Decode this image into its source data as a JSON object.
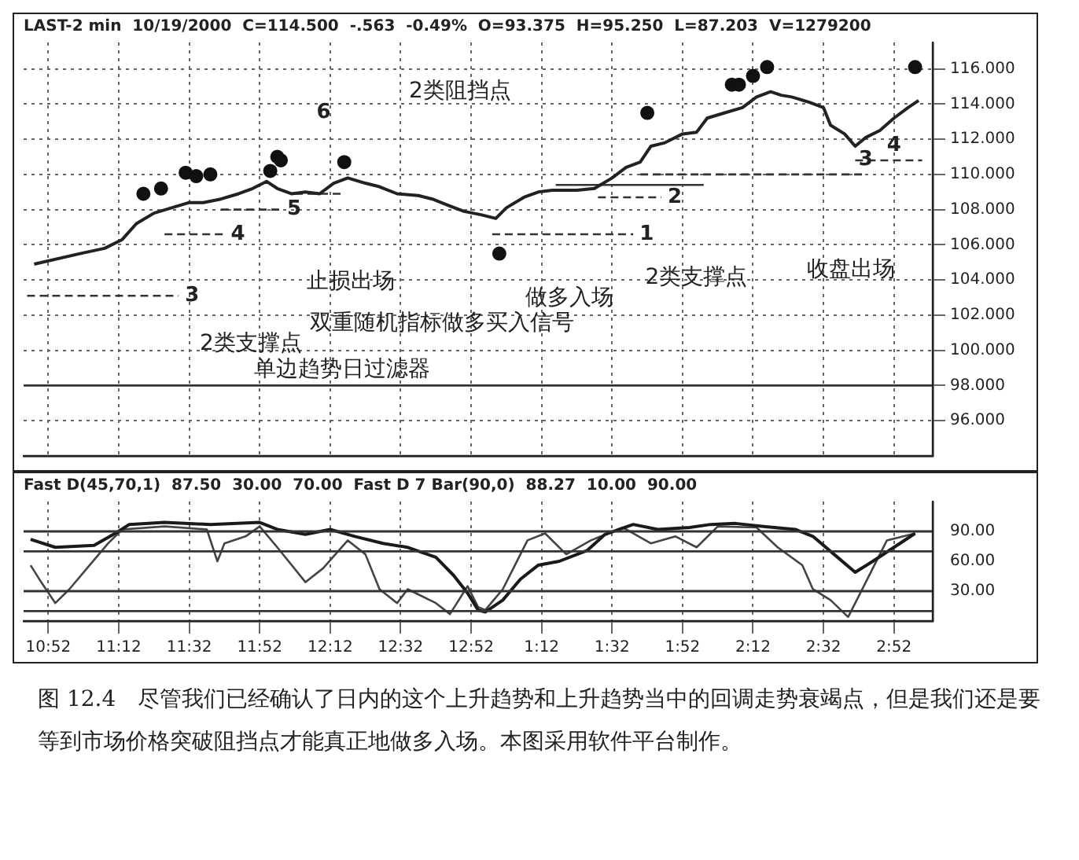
{
  "chart_data": [
    {
      "type": "line",
      "title": "LAST-2 min  10/19/2000  C=114.500  -.563  -0.49%  O=93.375  H=95.250  L=87.203  V=1279200",
      "xlim": [
        "2000-10-19T10:45",
        "2000-10-19T15:03"
      ],
      "ylim": [
        94,
        117.5
      ],
      "xticks": [
        {
          "value": "2000-10-19T10:52",
          "label": null
        },
        {
          "value": "2000-10-19T11:12",
          "label": null
        },
        {
          "value": "2000-10-19T11:32",
          "label": null
        },
        {
          "value": "2000-10-19T11:52",
          "label": null
        },
        {
          "value": "2000-10-19T12:12",
          "label": null
        },
        {
          "value": "2000-10-19T12:32",
          "label": null
        },
        {
          "value": "2000-10-19T12:52",
          "label": null
        },
        {
          "value": "2000-10-19T13:12",
          "label": null
        },
        {
          "value": "2000-10-19T13:32",
          "label": null
        },
        {
          "value": "2000-10-19T13:52",
          "label": null
        },
        {
          "value": "2000-10-19T14:12",
          "label": null
        },
        {
          "value": "2000-10-19T14:32",
          "label": null
        },
        {
          "value": "2000-10-19T14:52",
          "label": null
        }
      ],
      "yticks": [
        {
          "value": 96,
          "label": "96.000"
        },
        {
          "value": 98,
          "label": "98.000"
        },
        {
          "value": 100,
          "label": "100.000"
        },
        {
          "value": 102,
          "label": "102.000"
        },
        {
          "value": 104,
          "label": "104.000"
        },
        {
          "value": 106,
          "label": "106.000"
        },
        {
          "value": 108,
          "label": "108.000"
        },
        {
          "value": 110,
          "label": "110.000"
        },
        {
          "value": 112,
          "label": "112.000"
        },
        {
          "value": 114,
          "label": "114.000"
        },
        {
          "value": 116,
          "label": "116.000"
        }
      ],
      "tick_labels": "y",
      "grid": true,
      "series": [
        {
          "type": "line",
          "color": "#222222",
          "x": [
            "2000-10-19T10:48",
            "2000-10-19T11:01",
            "2000-10-19T11:08",
            "2000-10-19T11:13",
            "2000-10-19T11:17",
            "2000-10-19T11:22",
            "2000-10-19T11:27",
            "2000-10-19T11:32",
            "2000-10-19T11:36",
            "2000-10-19T11:41",
            "2000-10-19T11:46",
            "2000-10-19T11:50",
            "2000-10-19T11:54",
            "2000-10-19T11:57",
            "2000-10-19T12:01",
            "2000-10-19T12:05",
            "2000-10-19T12:09",
            "2000-10-19T12:13",
            "2000-10-19T12:17",
            "2000-10-19T12:22",
            "2000-10-19T12:26",
            "2000-10-19T12:31",
            "2000-10-19T12:37",
            "2000-10-19T12:41",
            "2000-10-19T12:46",
            "2000-10-19T12:50",
            "2000-10-19T12:55",
            "2000-10-19T12:59",
            "2000-10-19T13:02",
            "2000-10-19T13:07",
            "2000-10-19T13:11",
            "2000-10-19T13:15",
            "2000-10-19T13:22",
            "2000-10-19T13:27",
            "2000-10-19T13:32",
            "2000-10-19T13:36",
            "2000-10-19T13:40",
            "2000-10-19T13:43",
            "2000-10-19T13:47",
            "2000-10-19T13:52",
            "2000-10-19T13:56",
            "2000-10-19T13:59",
            "2000-10-19T14:04",
            "2000-10-19T14:09",
            "2000-10-19T14:13",
            "2000-10-19T14:17",
            "2000-10-19T14:20",
            "2000-10-19T14:23",
            "2000-10-19T14:28",
            "2000-10-19T14:32",
            "2000-10-19T14:34",
            "2000-10-19T14:38",
            "2000-10-19T14:41",
            "2000-10-19T14:44",
            "2000-10-19T14:48",
            "2000-10-19T14:52",
            "2000-10-19T14:56",
            "2000-10-19T14:59"
          ],
          "values": [
            104.9,
            105.5,
            105.8,
            106.3,
            107.2,
            107.8,
            108.1,
            108.4,
            108.4,
            108.6,
            108.9,
            109.2,
            109.6,
            109.2,
            108.9,
            109.0,
            108.9,
            109.5,
            109.8,
            109.5,
            109.3,
            108.9,
            108.8,
            108.6,
            108.2,
            107.9,
            107.7,
            107.5,
            108.1,
            108.7,
            109.0,
            109.1,
            109.1,
            109.2,
            109.8,
            110.4,
            110.7,
            111.6,
            111.8,
            112.3,
            112.4,
            113.2,
            113.5,
            113.8,
            114.4,
            114.7,
            114.5,
            114.4,
            114.1,
            113.8,
            112.8,
            112.3,
            111.6,
            112.1,
            112.5,
            113.2,
            113.8,
            114.2
          ]
        },
        {
          "type": "scatter",
          "color": "#111111",
          "marker": "circle",
          "x": [
            "2000-10-19T11:19",
            "2000-10-19T11:24",
            "2000-10-19T11:31",
            "2000-10-19T11:34",
            "2000-10-19T11:38",
            "2000-10-19T11:55",
            "2000-10-19T11:57",
            "2000-10-19T11:58",
            "2000-10-19T12:16",
            "2000-10-19T13:00",
            "2000-10-19T13:42",
            "2000-10-19T14:06",
            "2000-10-19T14:08",
            "2000-10-19T14:12",
            "2000-10-19T14:16",
            "2000-10-19T14:58"
          ],
          "values": [
            108.9,
            109.2,
            110.1,
            109.9,
            110.0,
            110.2,
            111.0,
            110.8,
            110.7,
            105.5,
            113.5,
            115.1,
            115.1,
            115.6,
            116.1,
            116.1
          ]
        },
        {
          "type": "line",
          "color": "#333333",
          "line_style": "dashed",
          "x": [
            "2000-10-19T10:46",
            "2000-10-19T11:29"
          ],
          "values": [
            103.1,
            103.1
          ]
        },
        {
          "type": "line",
          "color": "#333333",
          "line_style": "dashed",
          "x": [
            "2000-10-19T11:25",
            "2000-10-19T11:42"
          ],
          "values": [
            106.6,
            106.6
          ]
        },
        {
          "type": "line",
          "color": "#333333",
          "line_style": "dashed",
          "x": [
            "2000-10-19T11:41",
            "2000-10-19T11:58"
          ],
          "values": [
            108.0,
            108.0
          ]
        },
        {
          "type": "line",
          "color": "#333333",
          "line_style": "dashed",
          "x": [
            "2000-10-19T12:02",
            "2000-10-19T12:16"
          ],
          "values": [
            108.9,
            108.9
          ]
        },
        {
          "type": "line",
          "color": "#333333",
          "line_style": "dashed",
          "x": [
            "2000-10-19T12:58",
            "2000-10-19T13:38"
          ],
          "values": [
            106.6,
            106.6
          ]
        },
        {
          "type": "line",
          "color": "#333333",
          "line_style": "dashed",
          "x": [
            "2000-10-19T13:28",
            "2000-10-19T13:46"
          ],
          "values": [
            108.7,
            108.7
          ]
        },
        {
          "type": "line",
          "color": "#333333",
          "line_style": "solid",
          "x": [
            "2000-10-19T13:16",
            "2000-10-19T13:58"
          ],
          "values": [
            109.4,
            109.4
          ]
        },
        {
          "type": "line",
          "color": "#333333",
          "line_style": "dashed",
          "x": [
            "2000-10-19T13:40",
            "2000-10-19T14:44"
          ],
          "values": [
            110.0,
            110.0
          ]
        },
        {
          "type": "line",
          "color": "#333333",
          "line_style": "dashed",
          "x": [
            "2000-10-19T14:41",
            "2000-10-19T15:00"
          ],
          "values": [
            110.8,
            110.8
          ]
        }
      ],
      "ref_lines": [
        {
          "axis": "y",
          "value": 98,
          "label": "单边趋势日过滤器",
          "color": "#333333"
        }
      ],
      "annotations": [
        {
          "text": "3",
          "x": "2000-10-19T11:29",
          "y": 103.1
        },
        {
          "text": "4",
          "x": "2000-10-19T11:42",
          "y": 106.6
        },
        {
          "text": "5",
          "x": "2000-10-19T11:58",
          "y": 108.0
        },
        {
          "text": "1",
          "x": "2000-10-19T13:38",
          "y": 106.6
        },
        {
          "text": "2",
          "x": "2000-10-19T13:46",
          "y": 108.7
        },
        {
          "text": "3",
          "x": "2000-10-19T14:44",
          "y": 110.0
        },
        {
          "text": "4",
          "x": "2000-10-19T14:52",
          "y": 110.8
        },
        "6",
        "2类支撑点",
        "止损出场",
        "双重随机指标做多买入信号",
        "2类阻挡点",
        "做多入场",
        "2类支撑点",
        "收盘出场"
      ]
    },
    {
      "type": "line",
      "title": "Fast D(45,70,1)  87.50  30.00  70.00  Fast D 7 Bar(90,0)  88.27  10.00  90.00",
      "xlim": [
        "2000-10-19T10:45",
        "2000-10-19T15:03"
      ],
      "ylim": [
        0,
        120
      ],
      "xticks": [
        {
          "value": "2000-10-19T10:52",
          "label": "10:52"
        },
        {
          "value": "2000-10-19T11:12",
          "label": "11:12"
        },
        {
          "value": "2000-10-19T11:32",
          "label": "11:32"
        },
        {
          "value": "2000-10-19T11:52",
          "label": "11:52"
        },
        {
          "value": "2000-10-19T12:12",
          "label": "12:12"
        },
        {
          "value": "2000-10-19T12:32",
          "label": "12:32"
        },
        {
          "value": "2000-10-19T12:52",
          "label": "12:52"
        },
        {
          "value": "2000-10-19T13:12",
          "label": "1:12"
        },
        {
          "value": "2000-10-19T13:32",
          "label": "1:32"
        },
        {
          "value": "2000-10-19T13:52",
          "label": "1:52"
        },
        {
          "value": "2000-10-19T14:12",
          "label": "2:12"
        },
        {
          "value": "2000-10-19T14:32",
          "label": "2:32"
        },
        {
          "value": "2000-10-19T14:52",
          "label": "2:52"
        }
      ],
      "yticks": [
        {
          "value": 30,
          "label": "30.00"
        },
        {
          "value": 60,
          "label": "60.00"
        },
        {
          "value": 90,
          "label": "90.00"
        }
      ],
      "grid": "x",
      "series": [
        {
          "color": "#1a1a1a",
          "x": [
            "2000-10-19T10:47",
            "2000-10-19T10:54",
            "2000-10-19T11:05",
            "2000-10-19T11:11",
            "2000-10-19T11:15",
            "2000-10-19T11:25",
            "2000-10-19T11:38",
            "2000-10-19T11:52",
            "2000-10-19T11:57",
            "2000-10-19T12:05",
            "2000-10-19T12:12",
            "2000-10-19T12:19",
            "2000-10-19T12:27",
            "2000-10-19T12:34",
            "2000-10-19T12:42",
            "2000-10-19T12:47",
            "2000-10-19T12:51",
            "2000-10-19T12:54",
            "2000-10-19T12:56",
            "2000-10-19T13:01",
            "2000-10-19T13:06",
            "2000-10-19T13:11",
            "2000-10-19T13:17",
            "2000-10-19T13:25",
            "2000-10-19T13:30",
            "2000-10-19T13:38",
            "2000-10-19T13:45",
            "2000-10-19T13:54",
            "2000-10-19T14:00",
            "2000-10-19T14:07",
            "2000-10-19T14:15",
            "2000-10-19T14:24",
            "2000-10-19T14:29",
            "2000-10-19T14:35",
            "2000-10-19T14:41",
            "2000-10-19T14:46",
            "2000-10-19T14:52",
            "2000-10-19T14:58"
          ],
          "values": [
            82,
            74,
            76,
            88,
            97,
            99,
            97,
            99,
            92,
            87,
            92,
            85,
            78,
            74,
            64,
            46,
            28,
            11,
            9,
            21,
            42,
            56,
            60,
            71,
            87,
            97,
            92,
            94,
            97,
            98,
            95,
            92,
            85,
            67,
            49,
            60,
            74,
            88
          ]
        },
        {
          "color": "#444444",
          "x": [
            "2000-10-19T10:47",
            "2000-10-19T10:50",
            "2000-10-19T10:54",
            "2000-10-19T10:58",
            "2000-10-19T11:03",
            "2000-10-19T11:09",
            "2000-10-19T11:13",
            "2000-10-19T11:25",
            "2000-10-19T11:37",
            "2000-10-19T11:40",
            "2000-10-19T11:42",
            "2000-10-19T11:48",
            "2000-10-19T11:52",
            "2000-10-19T11:57",
            "2000-10-19T12:05",
            "2000-10-19T12:10",
            "2000-10-19T12:17",
            "2000-10-19T12:22",
            "2000-10-19T12:26",
            "2000-10-19T12:31",
            "2000-10-19T12:34",
            "2000-10-19T12:42",
            "2000-10-19T12:46",
            "2000-10-19T12:51",
            "2000-10-19T12:54",
            "2000-10-19T12:56",
            "2000-10-19T13:01",
            "2000-10-19T13:08",
            "2000-10-19T13:13",
            "2000-10-19T13:19",
            "2000-10-19T13:26",
            "2000-10-19T13:35",
            "2000-10-19T13:43",
            "2000-10-19T13:50",
            "2000-10-19T13:56",
            "2000-10-19T14:02",
            "2000-10-19T14:13",
            "2000-10-19T14:19",
            "2000-10-19T14:26",
            "2000-10-19T14:29",
            "2000-10-19T14:34",
            "2000-10-19T14:39",
            "2000-10-19T14:44",
            "2000-10-19T14:50",
            "2000-10-19T14:58"
          ],
          "values": [
            56,
            39,
            18,
            32,
            53,
            78,
            92,
            95,
            92,
            60,
            78,
            85,
            95,
            74,
            39,
            53,
            81,
            67,
            32,
            18,
            32,
            18,
            7,
            35,
            14,
            11,
            32,
            81,
            88,
            67,
            81,
            94,
            78,
            85,
            74,
            95,
            94,
            74,
            56,
            32,
            21,
            4,
            39,
            81,
            88
          ]
        }
      ],
      "ref_lines": [
        {
          "axis": "y",
          "value": 90,
          "color": "#333333"
        },
        {
          "axis": "y",
          "value": 70,
          "color": "#333333"
        },
        {
          "axis": "y",
          "value": 30,
          "color": "#333333"
        },
        {
          "axis": "y",
          "value": 10,
          "color": "#333333"
        }
      ],
      "annotations": [
        "图 12.4　尽管我们已经确认了日内的这个上升趋势和上升趋势当中的回调走势衰竭点，但是我们还是要等到市场价格突破阻挡点才能真正地做多入场。本图采用软件平台制作。"
      ]
    }
  ]
}
